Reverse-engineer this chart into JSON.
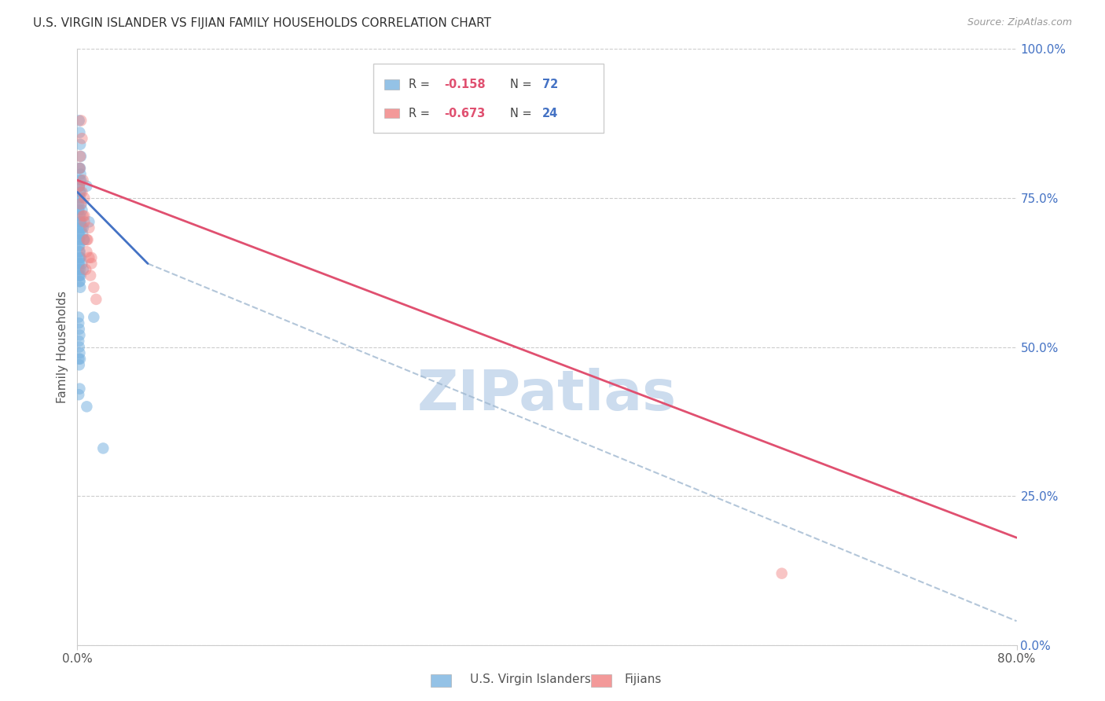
{
  "title": "U.S. VIRGIN ISLANDER VS FIJIAN FAMILY HOUSEHOLDS CORRELATION CHART",
  "source": "Source: ZipAtlas.com",
  "ylabel_left": "Family Households",
  "x_ticks_labels": [
    "0.0%",
    "80.0%"
  ],
  "x_ticks_pos": [
    0.0,
    80.0
  ],
  "y_ticks_right": [
    0.0,
    25.0,
    50.0,
    75.0,
    100.0
  ],
  "x_min": 0.0,
  "x_max": 80.0,
  "y_min": 0.0,
  "y_max": 100.0,
  "legend_label1": "U.S. Virgin Islanders",
  "legend_label2": "Fijians",
  "blue_color": "#7ab3e0",
  "pink_color": "#f08080",
  "blue_line_color": "#4472c4",
  "pink_line_color": "#e05070",
  "dashed_line_color": "#a0b8d0",
  "right_tick_color": "#4472c4",
  "watermark_color": "#ccdcee",
  "blue_scatter_x": [
    0.15,
    0.2,
    0.25,
    0.3,
    0.18,
    0.22,
    0.28,
    0.12,
    0.35,
    0.4,
    0.5,
    0.6,
    0.8,
    1.0,
    0.1,
    0.15,
    0.2,
    0.18,
    0.22,
    0.3,
    0.4,
    0.5,
    0.16,
    0.2,
    0.25,
    0.28,
    0.32,
    0.38,
    0.45,
    0.55,
    0.12,
    0.16,
    0.2,
    1.4,
    0.1,
    0.12,
    0.16,
    0.2,
    0.24,
    0.28,
    0.32,
    0.1,
    0.12,
    0.16,
    0.2,
    0.24,
    0.12,
    0.16,
    0.2,
    0.24,
    0.28,
    0.1,
    0.12,
    0.16,
    0.2,
    0.12,
    0.16,
    0.2,
    0.24,
    2.2,
    0.8,
    0.12,
    0.2,
    0.16,
    0.12,
    0.1,
    0.24,
    0.16,
    0.2,
    0.12,
    0.16,
    0.24
  ],
  "blue_scatter_y": [
    88,
    86,
    84,
    82,
    80,
    78,
    76,
    75,
    74,
    73,
    70,
    68,
    77,
    71,
    70,
    69,
    68,
    67,
    66,
    65,
    64,
    63,
    62,
    61,
    60,
    72,
    71,
    70,
    69,
    68,
    67,
    66,
    65,
    55,
    74,
    73,
    72,
    71,
    80,
    79,
    78,
    64,
    63,
    62,
    61,
    75,
    48,
    47,
    43,
    63,
    62,
    55,
    54,
    53,
    52,
    51,
    50,
    49,
    48,
    33,
    40,
    42,
    76,
    77,
    68,
    69,
    71,
    64,
    65,
    73,
    77,
    70
  ],
  "pink_scatter_x": [
    0.2,
    0.32,
    0.6,
    1.0,
    0.4,
    0.48,
    0.8,
    1.2,
    0.72,
    0.24,
    0.6,
    0.88,
    1.12,
    1.4,
    1.6,
    0.4,
    0.6,
    0.8,
    1.0,
    1.2,
    60.0,
    0.16,
    0.28,
    0.48
  ],
  "pink_scatter_y": [
    80,
    88,
    75,
    70,
    85,
    78,
    66,
    65,
    63,
    82,
    72,
    68,
    62,
    60,
    58,
    76,
    71,
    68,
    65,
    64,
    12,
    77,
    74,
    72
  ],
  "blue_reg_x0": 0.0,
  "blue_reg_x1": 6.0,
  "blue_reg_y0": 76.0,
  "blue_reg_y1": 64.0,
  "blue_dash_x0": 6.0,
  "blue_dash_x1": 80.0,
  "blue_dash_y0": 64.0,
  "blue_dash_y1": 4.0,
  "pink_reg_x0": 0.0,
  "pink_reg_x1": 80.0,
  "pink_reg_y0": 78.0,
  "pink_reg_y1": 18.0
}
